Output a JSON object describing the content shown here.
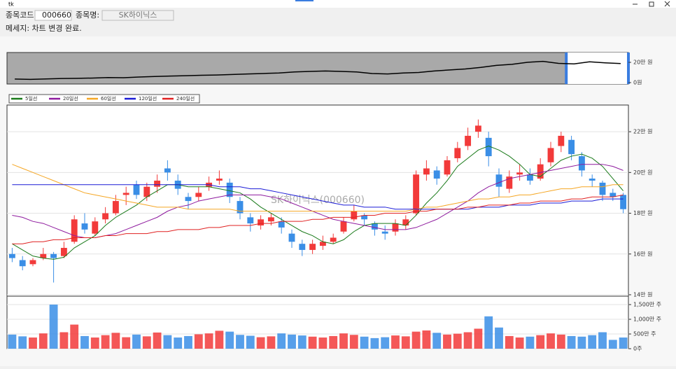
{
  "window": {
    "title": "tk"
  },
  "form": {
    "code_label": "종목코드:",
    "code": "000660",
    "name_label": "종목명:",
    "name": "SK하이닉스",
    "message": "메세지: 차트 변경 완료."
  },
  "chart_data": [
    {
      "type": "line",
      "color": "#000000",
      "values": [
        3.5,
        3.2,
        3.6,
        4.0,
        4.2,
        4.5,
        5.0,
        4.8,
        5.5,
        6.0,
        6.5,
        6.8,
        7.2,
        7.5,
        8.0,
        8.5,
        9.0,
        9.5,
        10.5,
        11.0,
        11.5,
        11.0,
        10.5,
        9.0,
        8.5,
        9.5,
        10.0,
        11.5,
        12.5,
        13.5,
        15.0,
        17.0,
        18.0,
        20.0,
        21.0,
        19.0,
        18.5,
        20.5,
        19.5,
        18.8
      ],
      "selection": [
        36,
        39
      ],
      "ylim": [
        -1.4,
        29.7
      ],
      "yticks": [
        {
          "value": 0,
          "label": "0원"
        },
        {
          "value": 20,
          "label": "20만 원"
        }
      ]
    },
    {
      "type": "candlestick",
      "watermark": "SK하이닉스(000660)",
      "up_color": "#f23a3a",
      "down_color": "#3a8ee6",
      "grid": true,
      "open": [
        16.0,
        15.7,
        15.5,
        15.8,
        16.0,
        15.9,
        16.6,
        17.5,
        17.0,
        17.7,
        18.0,
        18.9,
        19.4,
        18.8,
        19.3,
        20.2,
        19.6,
        18.8,
        18.8,
        19.3,
        19.6,
        19.5,
        18.6,
        17.8,
        17.4,
        17.6,
        17.6,
        17.0,
        16.5,
        16.2,
        16.4,
        16.6,
        17.1,
        17.7,
        17.9,
        17.5,
        17.1,
        17.1,
        17.4,
        18.0,
        19.9,
        20.1,
        19.9,
        20.7,
        21.3,
        22.0,
        21.7,
        19.9,
        19.2,
        19.9,
        19.9,
        19.7,
        20.5,
        21.3,
        21.6,
        20.8,
        19.7,
        19.5,
        19.0,
        18.9
      ],
      "high": [
        16.3,
        15.9,
        15.8,
        16.3,
        16.1,
        16.6,
        17.9,
        18.0,
        17.8,
        18.3,
        18.9,
        19.3,
        19.6,
        19.5,
        19.9,
        20.6,
        19.9,
        19.0,
        19.3,
        19.8,
        20.1,
        19.7,
        18.8,
        18.0,
        17.9,
        18.0,
        17.8,
        17.2,
        16.7,
        16.7,
        16.9,
        17.0,
        17.8,
        18.4,
        18.0,
        17.6,
        17.4,
        17.7,
        17.9,
        20.1,
        20.6,
        20.3,
        20.8,
        21.5,
        22.2,
        22.6,
        22.0,
        20.2,
        20.1,
        20.4,
        20.2,
        20.7,
        21.5,
        22.0,
        21.8,
        21.0,
        19.9,
        19.6,
        19.2,
        19.0
      ],
      "low": [
        15.6,
        15.2,
        15.4,
        15.7,
        14.6,
        15.8,
        16.5,
        17.0,
        16.9,
        17.5,
        17.9,
        18.4,
        18.7,
        18.6,
        19.0,
        19.6,
        18.9,
        18.2,
        18.6,
        19.1,
        19.4,
        18.5,
        17.7,
        17.1,
        17.2,
        17.4,
        17.0,
        16.3,
        15.9,
        16.0,
        16.2,
        16.5,
        17.0,
        17.6,
        17.4,
        16.9,
        16.7,
        16.9,
        17.2,
        17.9,
        19.6,
        19.4,
        19.8,
        20.5,
        21.1,
        21.7,
        20.3,
        18.8,
        19.0,
        19.6,
        19.4,
        19.6,
        20.3,
        21.0,
        20.6,
        19.8,
        19.3,
        18.6,
        18.6,
        18.0
      ],
      "close": [
        15.8,
        15.4,
        15.7,
        16.0,
        15.8,
        16.3,
        17.7,
        17.2,
        17.6,
        18.0,
        18.6,
        19.0,
        18.9,
        19.3,
        19.6,
        20.0,
        19.2,
        18.6,
        19.0,
        19.5,
        19.7,
        18.8,
        18.0,
        17.5,
        17.7,
        17.8,
        17.3,
        16.6,
        16.2,
        16.5,
        16.6,
        16.8,
        17.6,
        18.1,
        17.7,
        17.2,
        17.0,
        17.5,
        17.7,
        19.9,
        20.2,
        19.7,
        20.6,
        21.2,
        21.8,
        22.3,
        20.8,
        19.3,
        19.8,
        20.0,
        19.6,
        20.4,
        21.2,
        21.8,
        20.9,
        20.1,
        19.6,
        18.9,
        18.8,
        18.2
      ],
      "series": [
        {
          "name": "5일선",
          "color": "#1a7a1a",
          "values": [
            16.5,
            16.2,
            15.9,
            15.8,
            15.74,
            15.84,
            16.3,
            16.6,
            16.9,
            17.4,
            17.8,
            18.1,
            18.4,
            18.8,
            19.1,
            19.4,
            19.4,
            19.3,
            19.3,
            19.3,
            19.2,
            19.1,
            19.0,
            18.7,
            18.3,
            18.0,
            17.7,
            17.4,
            17.1,
            16.9,
            16.6,
            16.5,
            16.7,
            17.1,
            17.4,
            17.5,
            17.5,
            17.5,
            17.4,
            17.9,
            18.5,
            19.0,
            19.6,
            20.3,
            20.7,
            21.1,
            21.3,
            21.1,
            20.8,
            20.4,
            19.9,
            19.8,
            20.2,
            20.6,
            20.8,
            20.9,
            20.7,
            20.3,
            19.7,
            19.1
          ]
        },
        {
          "name": "20일선",
          "color": "#8e1a9e",
          "values": [
            17.9,
            17.8,
            17.6,
            17.5,
            17.3,
            17.1,
            16.9,
            16.8,
            16.8,
            16.9,
            17.0,
            17.2,
            17.4,
            17.6,
            17.8,
            18.1,
            18.3,
            18.4,
            18.6,
            18.7,
            18.8,
            18.9,
            18.9,
            18.9,
            18.9,
            18.8,
            18.7,
            18.5,
            18.3,
            18.1,
            17.9,
            17.7,
            17.6,
            17.5,
            17.4,
            17.3,
            17.2,
            17.2,
            17.2,
            17.3,
            17.5,
            17.7,
            18.0,
            18.3,
            18.6,
            19.0,
            19.3,
            19.5,
            19.7,
            19.8,
            19.9,
            20.0,
            20.1,
            20.2,
            20.3,
            20.4,
            20.4,
            20.4,
            20.3,
            20.1
          ]
        },
        {
          "name": "60일선",
          "color": "#f5a623",
          "values": [
            20.4,
            20.2,
            20.0,
            19.8,
            19.6,
            19.4,
            19.2,
            19.0,
            18.9,
            18.8,
            18.7,
            18.6,
            18.5,
            18.4,
            18.3,
            18.3,
            18.3,
            18.2,
            18.2,
            18.2,
            18.2,
            18.2,
            18.1,
            18.1,
            18.1,
            18.1,
            18.1,
            18.1,
            18.1,
            18.1,
            18.1,
            18.1,
            18.1,
            18.1,
            18.1,
            18.1,
            18.1,
            18.1,
            18.1,
            18.2,
            18.3,
            18.3,
            18.4,
            18.5,
            18.6,
            18.7,
            18.7,
            18.8,
            18.8,
            18.9,
            18.9,
            19.0,
            19.1,
            19.2,
            19.2,
            19.3,
            19.3,
            19.3,
            19.4,
            19.4
          ]
        },
        {
          "name": "120일선",
          "color": "#1a1ad6",
          "values": [
            19.4,
            19.4,
            19.4,
            19.4,
            19.4,
            19.4,
            19.4,
            19.4,
            19.4,
            19.4,
            19.4,
            19.4,
            19.4,
            19.4,
            19.4,
            19.4,
            19.4,
            19.4,
            19.4,
            19.4,
            19.3,
            19.3,
            19.3,
            19.2,
            19.2,
            19.1,
            19.0,
            18.9,
            18.8,
            18.7,
            18.6,
            18.5,
            18.4,
            18.4,
            18.3,
            18.3,
            18.3,
            18.2,
            18.2,
            18.2,
            18.2,
            18.2,
            18.2,
            18.2,
            18.2,
            18.3,
            18.3,
            18.3,
            18.4,
            18.4,
            18.4,
            18.5,
            18.5,
            18.5,
            18.6,
            18.6,
            18.6,
            18.7,
            18.7,
            18.7
          ]
        },
        {
          "name": "240일선",
          "color": "#e02020",
          "values": [
            16.5,
            16.5,
            16.6,
            16.6,
            16.7,
            16.7,
            16.8,
            16.8,
            16.8,
            16.9,
            16.9,
            17.0,
            17.0,
            17.0,
            17.1,
            17.1,
            17.2,
            17.2,
            17.2,
            17.3,
            17.3,
            17.4,
            17.4,
            17.4,
            17.5,
            17.5,
            17.6,
            17.6,
            17.6,
            17.7,
            17.7,
            17.8,
            17.8,
            17.8,
            17.9,
            17.9,
            18.0,
            18.0,
            18.0,
            18.1,
            18.1,
            18.2,
            18.2,
            18.2,
            18.3,
            18.3,
            18.4,
            18.4,
            18.4,
            18.5,
            18.5,
            18.6,
            18.6,
            18.6,
            18.7,
            18.7,
            18.8,
            18.8,
            18.8,
            18.9
          ]
        }
      ],
      "ylim": [
        13.93,
        23.31
      ],
      "yticks": [
        {
          "value": 14,
          "label": "14만 원"
        },
        {
          "value": 16,
          "label": "16만 원"
        },
        {
          "value": 18,
          "label": "18만 원"
        },
        {
          "value": 20,
          "label": "20만 원"
        },
        {
          "value": 22,
          "label": "22만 원"
        }
      ]
    },
    {
      "type": "bar",
      "values": [
        480,
        420,
        380,
        520,
        1500,
        560,
        820,
        430,
        380,
        460,
        540,
        390,
        480,
        420,
        550,
        460,
        380,
        430,
        490,
        520,
        610,
        580,
        470,
        440,
        390,
        420,
        520,
        480,
        450,
        410,
        380,
        430,
        520,
        470,
        410,
        360,
        390,
        450,
        420,
        580,
        620,
        540,
        480,
        510,
        560,
        680,
        1100,
        720,
        430,
        380,
        410,
        460,
        520,
        480,
        430,
        410,
        460,
        560,
        300,
        380
      ],
      "ylim": [
        0,
        1786
      ],
      "yticks": [
        {
          "value": 0,
          "label": "0주"
        },
        {
          "value": 500,
          "label": "500만 주"
        },
        {
          "value": 1000,
          "label": "1,000만 주"
        },
        {
          "value": 1500,
          "label": "1,500만 주"
        }
      ]
    }
  ]
}
